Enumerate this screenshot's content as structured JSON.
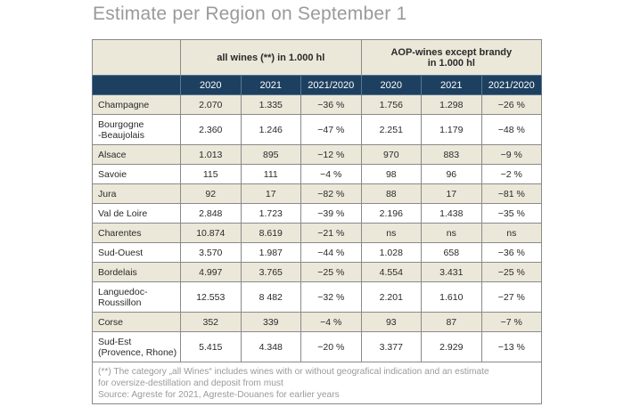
{
  "title": "Estimate per Region on September 1",
  "groups": {
    "all_wines": "all wines (**) in 1.000 hl",
    "aop_line1": "AOP-wines except brandy",
    "aop_line2": "in 1.000 hl"
  },
  "years": [
    "2020",
    "2021",
    "2021/2020",
    "2020",
    "2021",
    "2021/2020"
  ],
  "rows": [
    {
      "region": [
        "Champagne"
      ],
      "v": [
        "2.070",
        "1.335",
        "−36 %",
        "1.756",
        "1.298",
        "−26 %"
      ]
    },
    {
      "region": [
        "Bourgogne",
        "-Beaujolais"
      ],
      "v": [
        "2.360",
        "1.246",
        "−47 %",
        "2.251",
        "1.179",
        "−48 %"
      ]
    },
    {
      "region": [
        "Alsace"
      ],
      "v": [
        "1.013",
        "895",
        "−12 %",
        "970",
        "883",
        "−9 %"
      ]
    },
    {
      "region": [
        "Savoie"
      ],
      "v": [
        "115",
        "111",
        "−4 %",
        "98",
        "96",
        "−2 %"
      ]
    },
    {
      "region": [
        "Jura"
      ],
      "v": [
        "92",
        "17",
        "−82 %",
        "88",
        "17",
        "−81 %"
      ]
    },
    {
      "region": [
        "Val de Loire"
      ],
      "v": [
        "2.848",
        "1.723",
        "−39 %",
        "2.196",
        "1.438",
        "−35 %"
      ]
    },
    {
      "region": [
        "Charentes"
      ],
      "v": [
        "10.874",
        "8.619",
        "−21 %",
        "ns",
        "ns",
        "ns"
      ]
    },
    {
      "region": [
        "Sud-Ouest"
      ],
      "v": [
        "3.570",
        "1.987",
        "−44 %",
        "1.028",
        "658",
        "−36 %"
      ]
    },
    {
      "region": [
        "Bordelais"
      ],
      "v": [
        "4.997",
        "3.765",
        "−25 %",
        "4.554",
        "3.431",
        "−25 %"
      ]
    },
    {
      "region": [
        "Languedoc-",
        "Roussillon"
      ],
      "v": [
        "12.553",
        "8 482",
        "−32 %",
        "2.201",
        "1.610",
        "−27 %"
      ]
    },
    {
      "region": [
        "Corse"
      ],
      "v": [
        "352",
        "339",
        "−4 %",
        "93",
        "87",
        "−7 %"
      ]
    },
    {
      "region": [
        "Sud-Est",
        "(Provence, Rhone)"
      ],
      "v": [
        "5.415",
        "4.348",
        "−20 %",
        "3.377",
        "2.929",
        "−13 %"
      ]
    }
  ],
  "footer": [
    "(**) The category „all Wines“ includes wines with or without geografical indication and an estimate",
    "for oversize-destillation and deposit from must",
    "Source: Agreste for 2021, Agreste-Douanes for earlier years"
  ]
}
